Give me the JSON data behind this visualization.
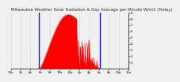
{
  "title": "Milwaukee Weather Solar Radiation & Day Average per Minute W/m2 (Today)",
  "bg_color": "#f0f0f0",
  "plot_bg_color": "#f0f0f0",
  "grid_color": "#aaaaaa",
  "red_color": "#ff0000",
  "blue_color": "#0000ff",
  "ylim": [
    0,
    900
  ],
  "xlim": [
    0,
    1440
  ],
  "sunrise_x": 345,
  "sunset_x": 1095,
  "peak_x": 700,
  "peak_y": 870,
  "title_fontsize": 3.8,
  "tick_fontsize": 2.8,
  "xtick_positions": [
    0,
    120,
    240,
    360,
    480,
    600,
    720,
    840,
    960,
    1080,
    1200,
    1320,
    1440
  ],
  "xtick_labels": [
    "12a",
    "2a",
    "4a",
    "6a",
    "8a",
    "10a",
    "12p",
    "2p",
    "4p",
    "6p",
    "8p",
    "10p",
    "12a"
  ],
  "ytick_vals": [
    100,
    200,
    300,
    400,
    500,
    600,
    700,
    800,
    900
  ],
  "ytick_labels": [
    "1",
    "2",
    "3",
    "4",
    "5",
    "6",
    "7",
    "8",
    "9"
  ]
}
